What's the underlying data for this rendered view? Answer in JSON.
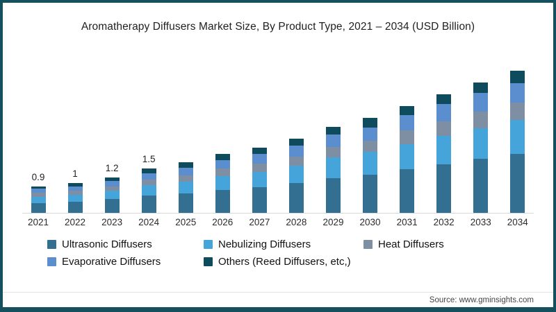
{
  "frame": {
    "border_color": "#15505e",
    "background": "#ffffff"
  },
  "title": "Aromatherapy Diffusers Market Size, By Product Type, 2021 – 2034 (USD Billion)",
  "source_note": "Source: www.gminsights.com",
  "chart_data": {
    "type": "bar",
    "stacked": true,
    "title": "Aromatherapy Diffusers Market Size, By Product Type, 2021 – 2034 (USD Billion)",
    "units": "USD Billion",
    "xlabel": "",
    "ylabel": "",
    "ylim": [
      0,
      5.2
    ],
    "grid": false,
    "legend_position": "bottom",
    "axis_color": "#d8d8d8",
    "categories": [
      "2021",
      "2022",
      "2023",
      "2024",
      "2025",
      "2026",
      "2027",
      "2028",
      "2029",
      "2030",
      "2031",
      "2032",
      "2033",
      "2034"
    ],
    "bar_value_labels": [
      "0.9",
      "1",
      "1.2",
      "1.5",
      "",
      "",
      "",
      "",
      "",
      "",
      "",
      "",
      "",
      ""
    ],
    "totals": [
      0.9,
      1.0,
      1.2,
      1.5,
      1.7,
      2.0,
      2.2,
      2.5,
      2.9,
      3.2,
      3.6,
      4.0,
      4.4,
      4.8
    ],
    "series": [
      {
        "name": "Ultrasonic Diffusers",
        "color": "#326f90",
        "values": [
          0.34,
          0.38,
          0.46,
          0.58,
          0.66,
          0.78,
          0.87,
          1.0,
          1.17,
          1.3,
          1.47,
          1.64,
          1.82,
          2.0
        ]
      },
      {
        "name": "Nebulizing Diffusers",
        "color": "#45a5da",
        "values": [
          0.21,
          0.24,
          0.28,
          0.35,
          0.4,
          0.47,
          0.52,
          0.6,
          0.7,
          0.77,
          0.86,
          0.96,
          1.05,
          1.15
        ]
      },
      {
        "name": "Heat Diffusers",
        "color": "#7e8ea3",
        "values": [
          0.12,
          0.13,
          0.15,
          0.19,
          0.21,
          0.25,
          0.28,
          0.31,
          0.36,
          0.36,
          0.45,
          0.5,
          0.55,
          0.57
        ]
      },
      {
        "name": "Evaporative Diffusers",
        "color": "#5a8ecf",
        "values": [
          0.14,
          0.15,
          0.18,
          0.22,
          0.25,
          0.29,
          0.32,
          0.36,
          0.42,
          0.46,
          0.52,
          0.57,
          0.63,
          0.65
        ]
      },
      {
        "name": "Others (Reed Diffusers, etc,)",
        "color": "#0d4b5d",
        "values": [
          0.09,
          0.1,
          0.13,
          0.16,
          0.18,
          0.21,
          0.21,
          0.23,
          0.25,
          0.31,
          0.3,
          0.33,
          0.35,
          0.43
        ]
      }
    ]
  }
}
